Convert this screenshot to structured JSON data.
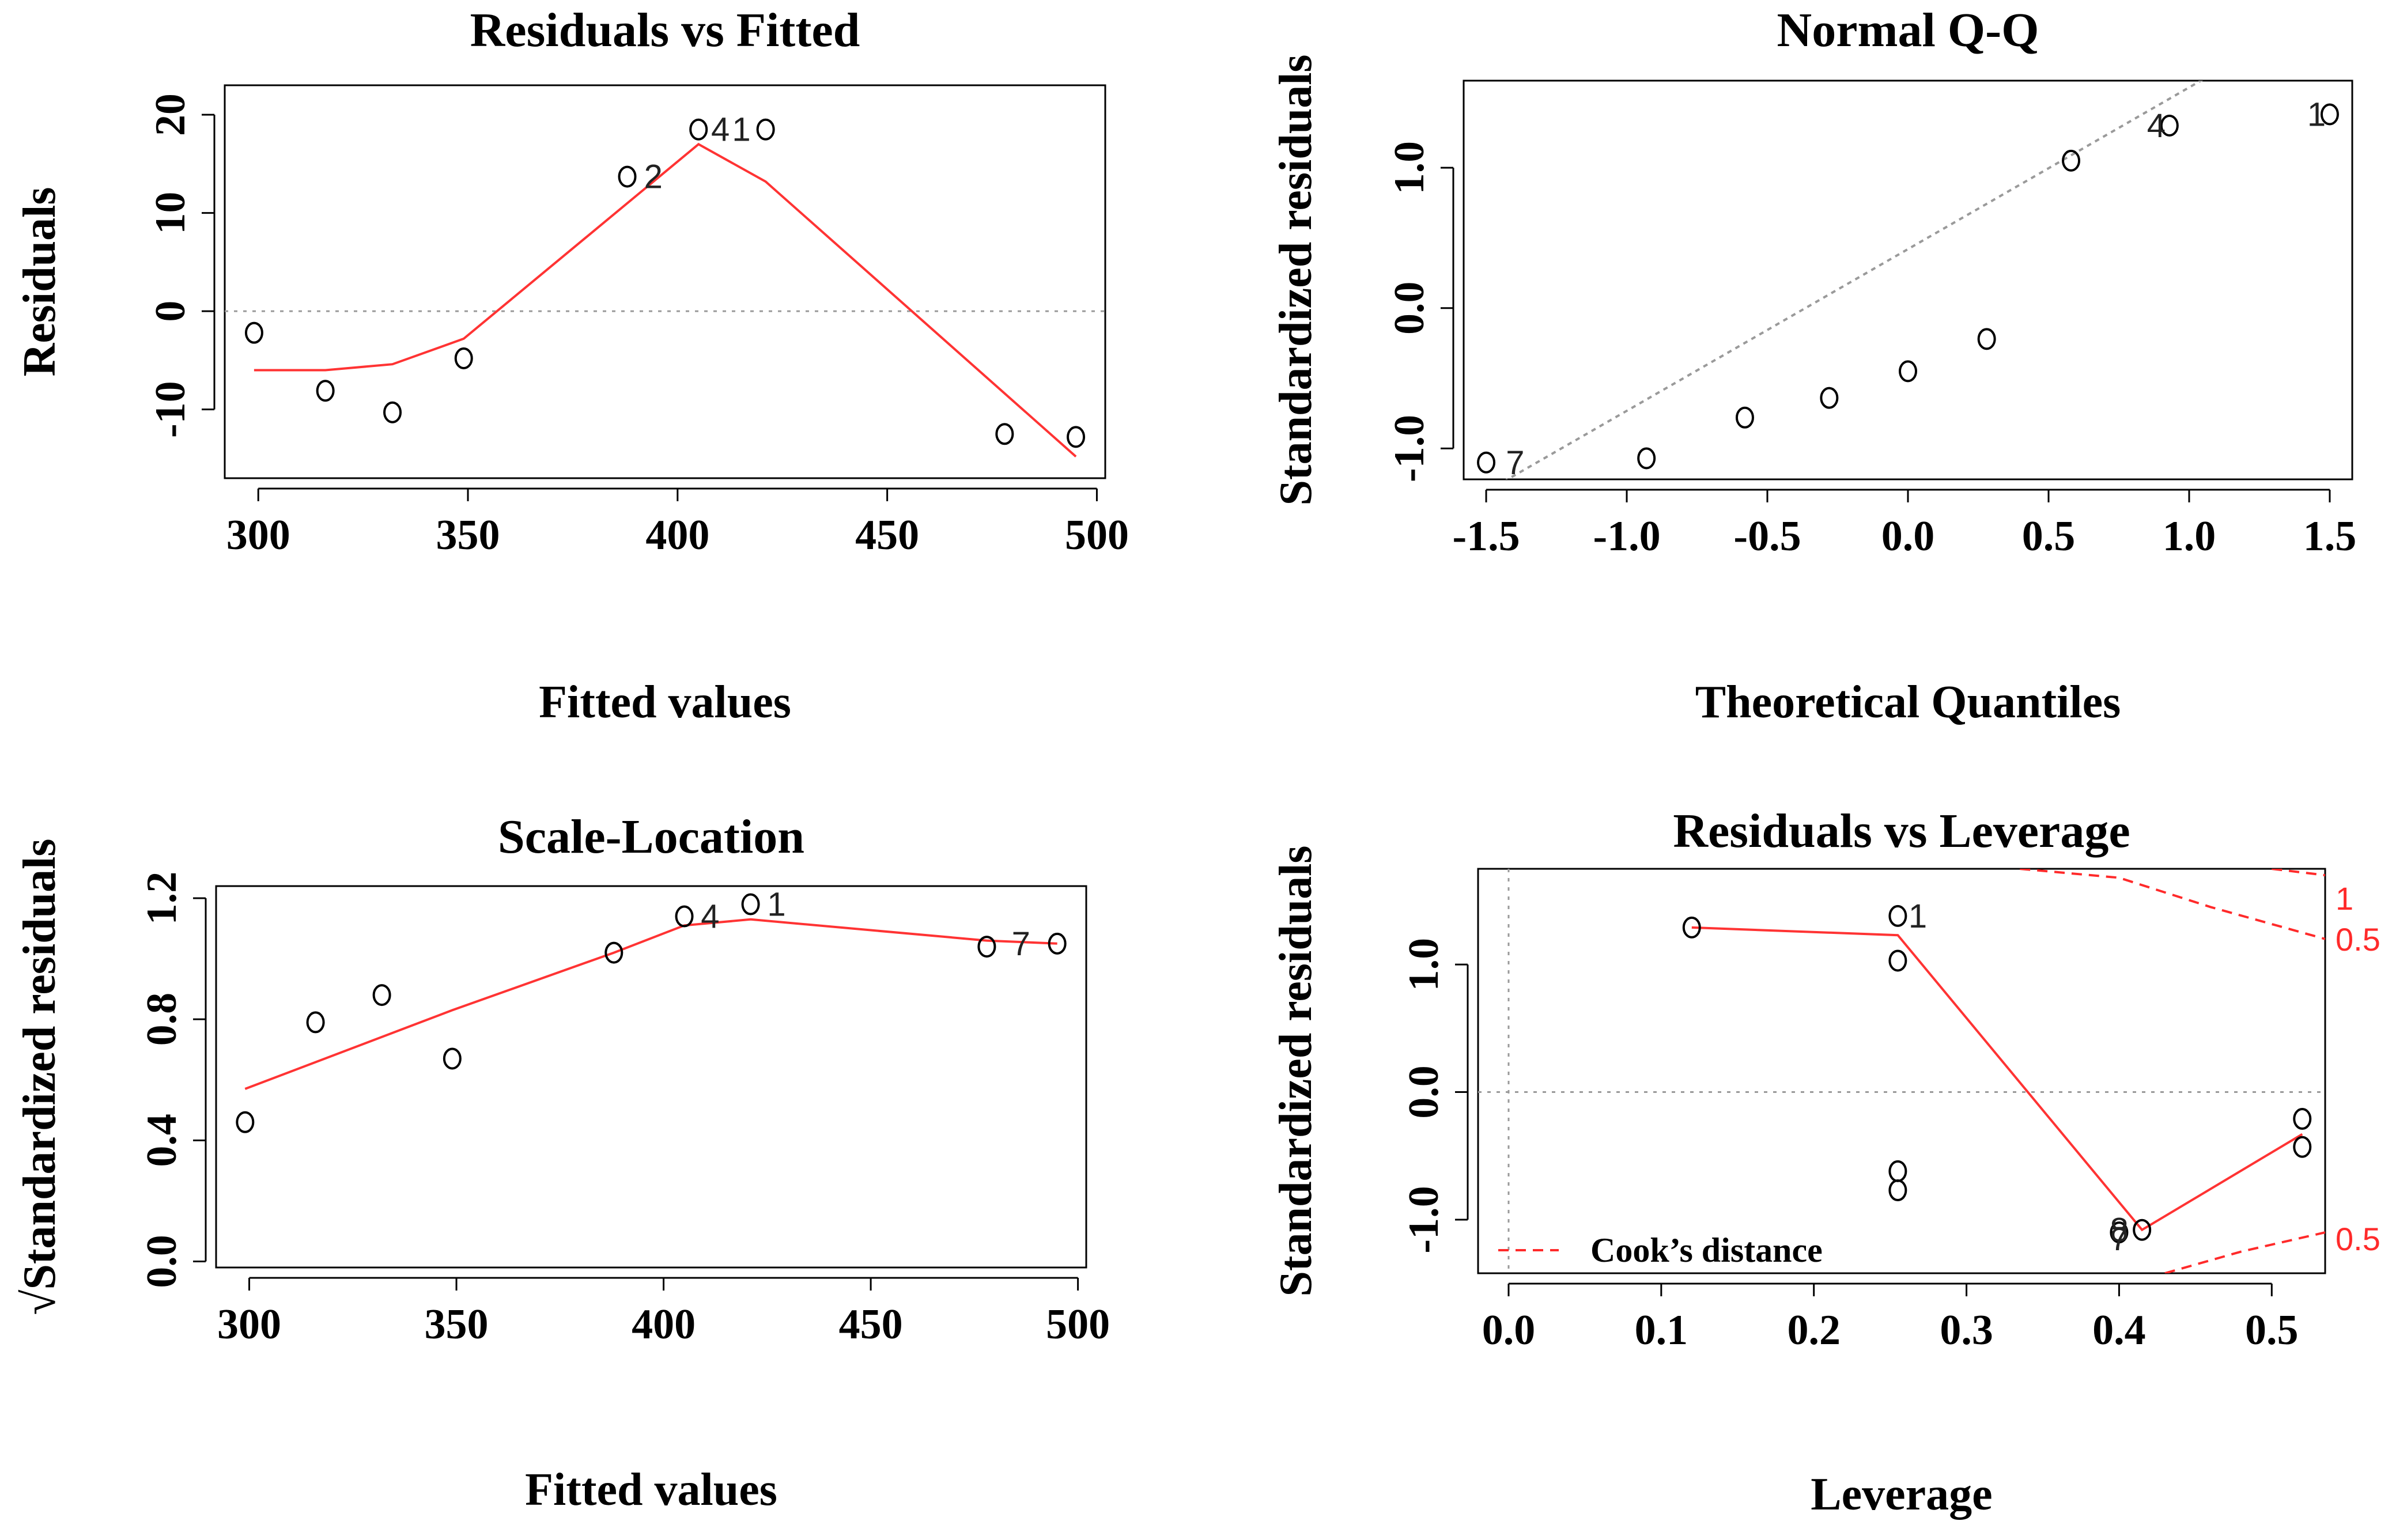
{
  "colors": {
    "smooth": "#ff3333",
    "ref": "#9a9a9a",
    "cook": "#ff2a2a",
    "point": "#000000",
    "axis": "#000000"
  },
  "chart_data": [
    {
      "id": "p1",
      "type": "scatter",
      "title": "Residuals vs Fitted",
      "xlabel": "Fitted values",
      "ylabel": "Residuals",
      "xlim": [
        292,
        502
      ],
      "ylim": [
        -17,
        23
      ],
      "xticks": [
        300,
        350,
        400,
        450,
        500
      ],
      "yticks": [
        -10,
        0,
        10,
        20
      ],
      "xtick_labels": [
        "300",
        "350",
        "400",
        "450",
        "500"
      ],
      "ytick_labels": [
        "-10",
        "0",
        "10",
        "20"
      ],
      "hline": 0,
      "points": [
        {
          "x": 299,
          "y": -2.2
        },
        {
          "x": 316,
          "y": -8.1
        },
        {
          "x": 332,
          "y": -10.3
        },
        {
          "x": 349,
          "y": -4.8
        },
        {
          "x": 388,
          "y": 13.7
        },
        {
          "x": 405,
          "y": 18.5
        },
        {
          "x": 421,
          "y": 18.5
        },
        {
          "x": 478,
          "y": -12.5
        },
        {
          "x": 495,
          "y": -12.8
        }
      ],
      "point_labels": [
        {
          "text": "2",
          "x": 392,
          "y": 13.7
        },
        {
          "text": "4",
          "x": 408,
          "y": 18.5
        },
        {
          "text": "1",
          "x": 413,
          "y": 18.5
        }
      ],
      "smooth": [
        {
          "x": 299,
          "y": -6.0
        },
        {
          "x": 316,
          "y": -6.0
        },
        {
          "x": 332,
          "y": -5.4
        },
        {
          "x": 349,
          "y": -2.8
        },
        {
          "x": 405,
          "y": 17.0
        },
        {
          "x": 421,
          "y": 13.2
        },
        {
          "x": 495,
          "y": -14.8
        }
      ]
    },
    {
      "id": "p2",
      "type": "scatter",
      "title": "Normal Q-Q",
      "xlabel": "Theoretical Quantiles",
      "ylabel": "Standardized residuals",
      "xlim": [
        -1.58,
        1.58
      ],
      "ylim": [
        -1.22,
        1.62
      ],
      "xticks": [
        -1.5,
        -1.0,
        -0.5,
        0.0,
        0.5,
        1.0,
        1.5
      ],
      "yticks": [
        -1.0,
        0.0,
        1.0
      ],
      "xtick_labels": [
        "-1.5",
        "-1.0",
        "-0.5",
        "0.0",
        "0.5",
        "1.0",
        "1.5"
      ],
      "ytick_labels": [
        "-1.0",
        "0.0",
        "1.0"
      ],
      "refline": [
        {
          "x": -1.58,
          "y": -1.4
        },
        {
          "x": 1.58,
          "y": 2.24
        }
      ],
      "points": [
        {
          "x": -1.5,
          "y": -1.1
        },
        {
          "x": -0.93,
          "y": -1.07
        },
        {
          "x": -0.58,
          "y": -0.78
        },
        {
          "x": -0.28,
          "y": -0.64
        },
        {
          "x": 0.0,
          "y": -0.45
        },
        {
          "x": 0.28,
          "y": -0.22
        },
        {
          "x": 0.58,
          "y": 1.05
        },
        {
          "x": 0.93,
          "y": 1.3
        },
        {
          "x": 1.5,
          "y": 1.38
        }
      ],
      "point_labels": [
        {
          "text": "7",
          "x": -1.43,
          "y": -1.1
        },
        {
          "text": "4",
          "x": 0.85,
          "y": 1.3
        },
        {
          "text": "1",
          "x": 1.42,
          "y": 1.38
        }
      ]
    },
    {
      "id": "p3",
      "type": "scatter",
      "title": "Scale-Location",
      "xlabel": "Fitted values",
      "ylabel": "√Standardized residuals",
      "xlim": [
        292,
        502
      ],
      "ylim": [
        -0.02,
        1.24
      ],
      "xticks": [
        300,
        350,
        400,
        450,
        500
      ],
      "yticks": [
        0.0,
        0.4,
        0.8,
        1.2
      ],
      "xtick_labels": [
        "300",
        "350",
        "400",
        "450",
        "500"
      ],
      "ytick_labels": [
        "0.0",
        "0.4",
        "0.8",
        "1.2"
      ],
      "points": [
        {
          "x": 299,
          "y": 0.46
        },
        {
          "x": 316,
          "y": 0.79
        },
        {
          "x": 332,
          "y": 0.88
        },
        {
          "x": 349,
          "y": 0.67
        },
        {
          "x": 388,
          "y": 1.02
        },
        {
          "x": 405,
          "y": 1.14
        },
        {
          "x": 421,
          "y": 1.18
        },
        {
          "x": 478,
          "y": 1.04
        },
        {
          "x": 495,
          "y": 1.05
        }
      ],
      "point_labels": [
        {
          "text": "4",
          "x": 409,
          "y": 1.14
        },
        {
          "text": "1",
          "x": 425,
          "y": 1.18
        },
        {
          "text": "7",
          "x": 484,
          "y": 1.05
        }
      ],
      "smooth": [
        {
          "x": 299,
          "y": 0.57
        },
        {
          "x": 349,
          "y": 0.83
        },
        {
          "x": 388,
          "y": 1.02
        },
        {
          "x": 405,
          "y": 1.11
        },
        {
          "x": 421,
          "y": 1.13
        },
        {
          "x": 478,
          "y": 1.06
        },
        {
          "x": 495,
          "y": 1.05
        }
      ]
    },
    {
      "id": "p4",
      "type": "scatter",
      "title": "Residuals vs Leverage",
      "xlabel": "Leverage",
      "ylabel": "Standardized residuals",
      "xlim": [
        -0.02,
        0.535
      ],
      "ylim": [
        -1.42,
        1.75
      ],
      "xticks": [
        0.0,
        0.1,
        0.2,
        0.3,
        0.4,
        0.5
      ],
      "yticks": [
        -1.0,
        0.0,
        1.0
      ],
      "xtick_labels": [
        "0.0",
        "0.1",
        "0.2",
        "0.3",
        "0.4",
        "0.5"
      ],
      "ytick_labels": [
        "-1.0",
        "0.0",
        "1.0"
      ],
      "hline": 0,
      "vline": 0,
      "points": [
        {
          "x": 0.12,
          "y": 1.29
        },
        {
          "x": 0.255,
          "y": 1.38
        },
        {
          "x": 0.255,
          "y": 1.03
        },
        {
          "x": 0.255,
          "y": -0.62
        },
        {
          "x": 0.255,
          "y": -0.77
        },
        {
          "x": 0.4,
          "y": -1.1
        },
        {
          "x": 0.415,
          "y": -1.08
        },
        {
          "x": 0.52,
          "y": -0.21
        },
        {
          "x": 0.52,
          "y": -0.43
        }
      ],
      "point_labels": [
        {
          "text": "1",
          "x": 0.262,
          "y": 1.38
        },
        {
          "text": "8",
          "x": 0.394,
          "y": -1.08
        },
        {
          "text": "7",
          "x": 0.394,
          "y": -1.15
        }
      ],
      "smooth": [
        {
          "x": 0.12,
          "y": 1.29
        },
        {
          "x": 0.255,
          "y": 1.23
        },
        {
          "x": 0.415,
          "y": -1.08
        },
        {
          "x": 0.52,
          "y": -0.33
        }
      ],
      "cook_curves": [
        [
          {
            "x": 0.335,
            "y": 1.75
          },
          {
            "x": 0.4,
            "y": 1.68
          },
          {
            "x": 0.46,
            "y": 1.45
          },
          {
            "x": 0.535,
            "y": 1.2
          }
        ],
        [
          {
            "x": 0.5,
            "y": 1.75
          },
          {
            "x": 0.535,
            "y": 1.7
          }
        ],
        [
          {
            "x": 0.43,
            "y": -1.42
          },
          {
            "x": 0.48,
            "y": -1.25
          },
          {
            "x": 0.535,
            "y": -1.1
          }
        ]
      ],
      "cook_labels": [
        "1",
        "0.5",
        "0.5"
      ],
      "legend_label": "Cook’s distance",
      "legend_loc": "bottom-left"
    }
  ]
}
